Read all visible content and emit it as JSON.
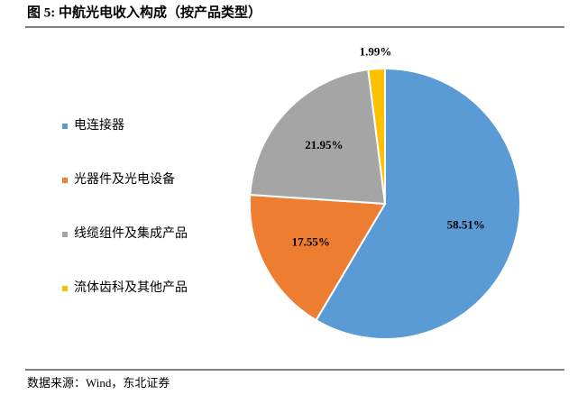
{
  "chart_data": {
    "type": "pie",
    "title": "图 5: 中航光电收入构成（按产品类型）",
    "source": "数据来源：Wind，东北证券",
    "categories": [
      "电连接器",
      "光器件及光电设备",
      "线缆组件及集成产品",
      "流体齿科及其他产品"
    ],
    "values": [
      58.51,
      17.55,
      21.95,
      1.99
    ],
    "value_labels": [
      "58.51%",
      "17.55%",
      "21.95%",
      "1.99%"
    ],
    "colors": [
      "#5b9bd5",
      "#ed7d31",
      "#a5a5a5",
      "#ffc000"
    ]
  }
}
